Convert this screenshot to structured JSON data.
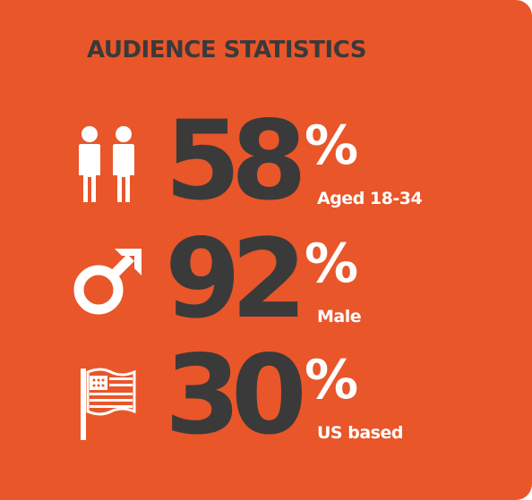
{
  "colors": {
    "background": "#e8562a",
    "number": "#3a3a3a",
    "accent_text": "#ffffff",
    "title": "#3a3a3a"
  },
  "title": "AUDIENCE STATISTICS",
  "stats": [
    {
      "icon": "people-icon",
      "value": "58",
      "percent_sign": "%",
      "label": "Aged 18-34"
    },
    {
      "icon": "male-symbol-icon",
      "value": "92",
      "percent_sign": "%",
      "label": "Male"
    },
    {
      "icon": "us-flag-icon",
      "value": "30",
      "percent_sign": "%",
      "label": "US based"
    }
  ]
}
